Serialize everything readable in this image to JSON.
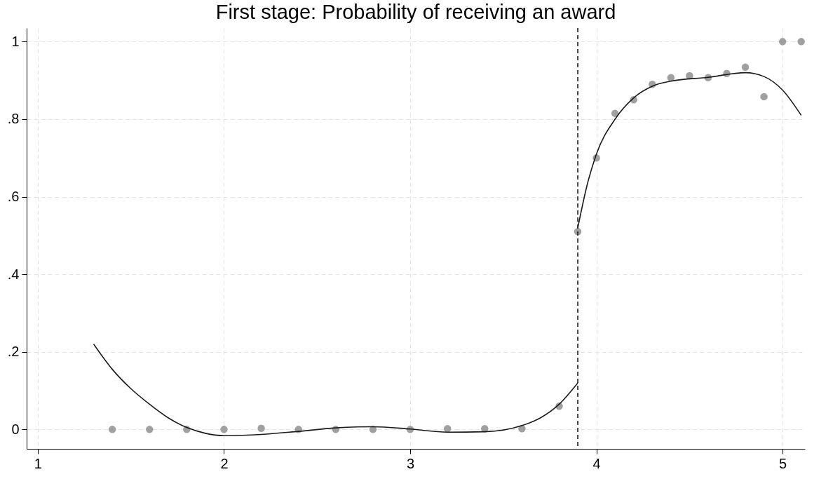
{
  "chart_data": {
    "type": "scatter",
    "title": "First stage: Probability of receiving an award",
    "xlim": [
      0.94,
      5.12
    ],
    "xticks": [
      1,
      2,
      3,
      4,
      5
    ],
    "ylim": [
      -0.05,
      1.035
    ],
    "yticks": [
      {
        "value": 0,
        "label": "0"
      },
      {
        "value": 0.2,
        "label": ".2"
      },
      {
        "value": 0.4,
        "label": ".4"
      },
      {
        "value": 0.6,
        "label": ".6"
      },
      {
        "value": 0.8,
        "label": ".8"
      },
      {
        "value": 1,
        "label": "1"
      }
    ],
    "grid": true,
    "series": [
      {
        "marker": "circle",
        "color": "#a0a0a0",
        "x": [
          1.4,
          1.6,
          1.8,
          2.0,
          2.2,
          2.4,
          2.6,
          2.8,
          3.0,
          3.2,
          3.4,
          3.6,
          3.8,
          3.9,
          4.0,
          4.1,
          4.2,
          4.3,
          4.4,
          4.5,
          4.6,
          4.7,
          4.8,
          4.9,
          5.0,
          5.1
        ],
        "values": [
          0,
          0,
          0,
          0,
          0.003,
          0,
          0,
          0,
          0,
          0.002,
          0.002,
          0.002,
          0.06,
          0.51,
          0.7,
          0.815,
          0.85,
          0.89,
          0.907,
          0.912,
          0.907,
          0.918,
          0.934,
          0.858,
          1,
          1
        ]
      },
      {
        "type": "line",
        "color": "#1a1a1a",
        "x": [
          1.3,
          1.4,
          1.5,
          1.6,
          1.7,
          1.8,
          1.9,
          2.0,
          2.2,
          2.4,
          2.6,
          2.8,
          3.0,
          3.2,
          3.4,
          3.6,
          3.7,
          3.8,
          3.9
        ],
        "values": [
          0.22,
          0.155,
          0.105,
          0.065,
          0.03,
          0.005,
          -0.01,
          -0.016,
          -0.013,
          -0.005,
          0.004,
          0.007,
          0.001,
          -0.007,
          -0.006,
          0.01,
          0.03,
          0.065,
          0.12
        ]
      },
      {
        "type": "line",
        "color": "#1a1a1a",
        "x": [
          3.9,
          3.95,
          4.0,
          4.1,
          4.2,
          4.3,
          4.4,
          4.6,
          4.8,
          4.9,
          5.0,
          5.1
        ],
        "values": [
          0.52,
          0.63,
          0.71,
          0.8,
          0.855,
          0.885,
          0.898,
          0.908,
          0.92,
          0.91,
          0.875,
          0.81
        ]
      }
    ],
    "ref_lines": [
      {
        "axis": "x",
        "value": 3.9,
        "line_style": "dashed",
        "color": "#1a1a1a"
      }
    ]
  }
}
